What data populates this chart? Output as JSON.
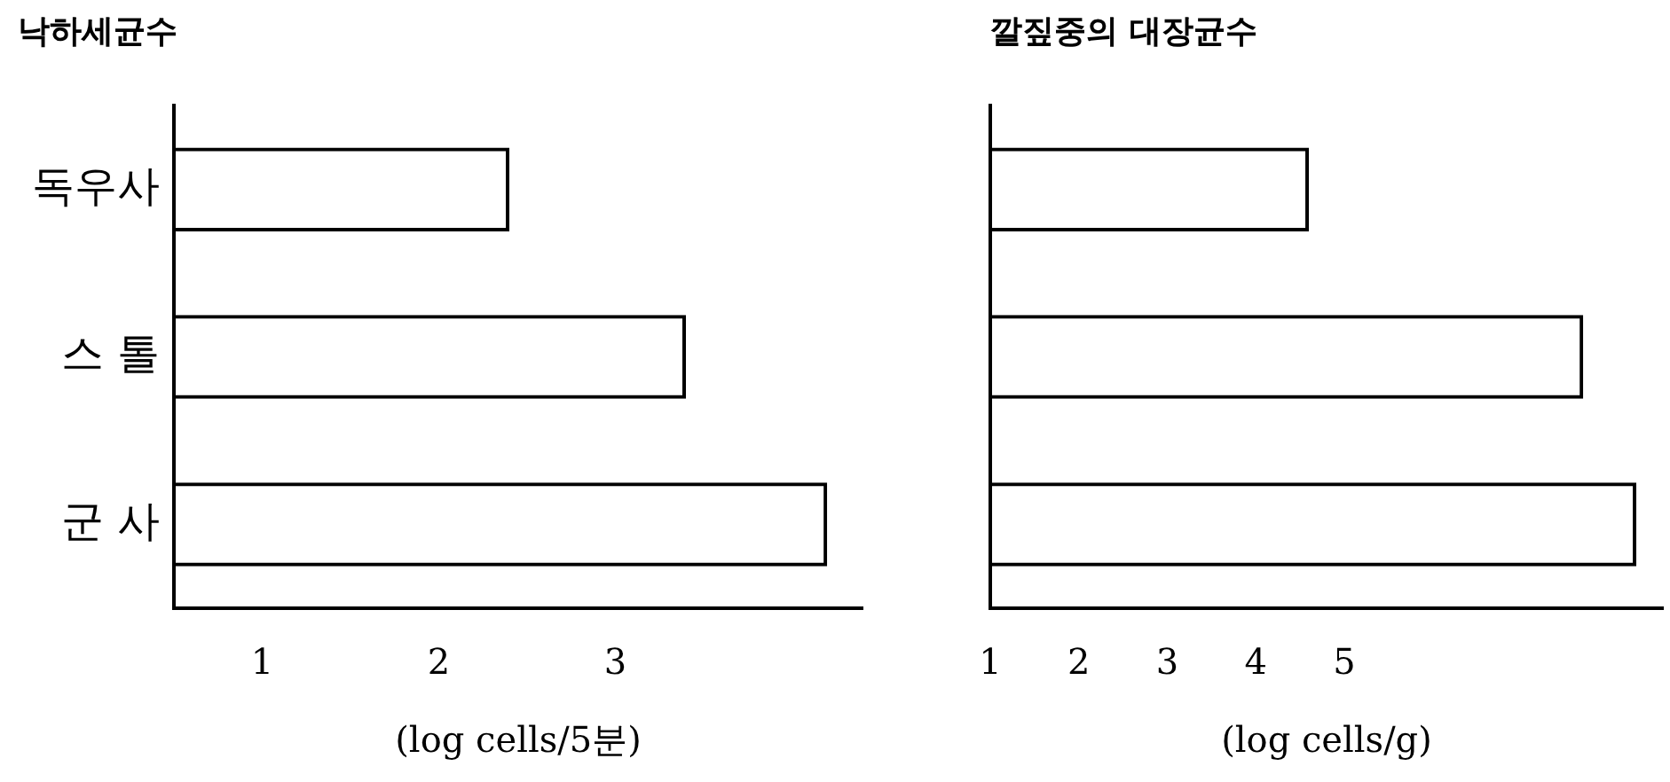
{
  "chart_data": [
    {
      "type": "bar",
      "orientation": "horizontal",
      "title": "낙하세균수",
      "xlabel": "(log cells/5분)",
      "categories": [
        "독우사",
        "스 톨",
        "군 사"
      ],
      "values": [
        2.4,
        3.4,
        4.2
      ],
      "color": "#000000",
      "xlim": [
        0.5,
        4.4
      ],
      "xticks": [
        1,
        2,
        3
      ],
      "grid": false,
      "legend": false
    },
    {
      "type": "bar",
      "orientation": "horizontal",
      "title": "깔짚중의 대장균수",
      "xlabel": "(log cells/g)",
      "categories": [
        null,
        null,
        null
      ],
      "values": [
        4.6,
        7.7,
        8.3
      ],
      "color": "#000000",
      "xlim": [
        1,
        8.6
      ],
      "xticks": [
        1,
        2,
        3,
        4,
        5
      ],
      "grid": false,
      "legend": false,
      "tick_labels": "x"
    }
  ]
}
